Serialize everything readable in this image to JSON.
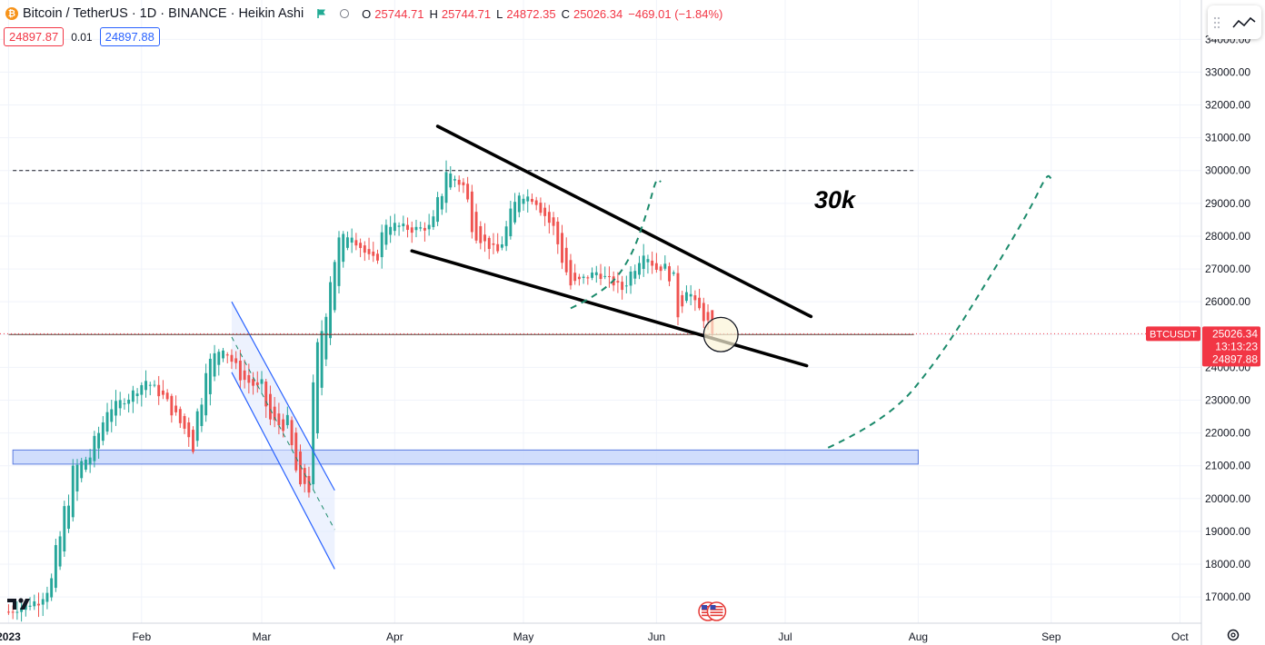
{
  "symbol": {
    "title": "Bitcoin / TetherUS · 1D · BINANCE · Heikin Ashi",
    "coin_icon": "bitcoin-icon",
    "coin_glyph": "₿",
    "o_label": "O",
    "o_value": "25744.71",
    "h_label": "H",
    "h_value": "25744.71",
    "l_label": "L",
    "l_value": "24872.35",
    "c_label": "C",
    "c_value": "25026.34",
    "change": "−469.01 (−1.84%)"
  },
  "trade": {
    "sell_price": "24897.87",
    "spread": "0.01",
    "buy_price": "24897.88"
  },
  "annotation_text": "30k",
  "price_axis": {
    "ticks": [
      "34000.00",
      "33000.00",
      "32000.00",
      "31000.00",
      "30000.00",
      "29000.00",
      "28000.00",
      "27000.00",
      "26000.00",
      "25000.00",
      "24000.00",
      "23000.00",
      "22000.00",
      "21000.00",
      "20000.00",
      "19000.00",
      "18000.00",
      "17000.00"
    ],
    "ticker_tag": "BTCUSDT",
    "last_price": "25026.34",
    "countdown": "13:13:23",
    "bid_price": "24897.88"
  },
  "time_axis": {
    "ticks": [
      {
        "label": "2023",
        "bold": true
      },
      {
        "label": "Feb",
        "bold": false
      },
      {
        "label": "Mar",
        "bold": false
      },
      {
        "label": "Apr",
        "bold": false
      },
      {
        "label": "May",
        "bold": false
      },
      {
        "label": "Jun",
        "bold": false
      },
      {
        "label": "Jul",
        "bold": false
      },
      {
        "label": "Aug",
        "bold": false
      },
      {
        "label": "Sep",
        "bold": false
      },
      {
        "label": "Oct",
        "bold": false
      }
    ]
  },
  "colors": {
    "up": "#26a69a",
    "down": "#ef5350",
    "accent_red": "#f23645",
    "channel": "#2962ff",
    "zone_fill": "#c8d7fb",
    "projection": "#1b8a6b",
    "grid": "#f0f3fa"
  },
  "chart_data": {
    "type": "candlestick",
    "style": "Heikin Ashi",
    "interval": "1D",
    "exchange": "BINANCE",
    "y_range": [
      16200,
      35200
    ],
    "x_range": [
      "2022-12-30",
      "2023-10-06"
    ],
    "grid": true,
    "anchors": [
      [
        "2023-01-01",
        16550
      ],
      [
        "2023-01-08",
        16900
      ],
      [
        "2023-01-11",
        17400
      ],
      [
        "2023-01-14",
        19500
      ],
      [
        "2023-01-16",
        20900
      ],
      [
        "2023-01-20",
        21300
      ],
      [
        "2023-01-24",
        22700
      ],
      [
        "2023-01-29",
        23100
      ],
      [
        "2023-02-02",
        23600
      ],
      [
        "2023-02-06",
        23100
      ],
      [
        "2023-02-10",
        22300
      ],
      [
        "2023-02-13",
        21800
      ],
      [
        "2023-02-16",
        24000
      ],
      [
        "2023-02-20",
        24700
      ],
      [
        "2023-02-24",
        23700
      ],
      [
        "2023-03-01",
        23300
      ],
      [
        "2023-03-03",
        22400
      ],
      [
        "2023-03-07",
        22100
      ],
      [
        "2023-03-10",
        20200
      ],
      [
        "2023-03-12",
        20800
      ],
      [
        "2023-03-14",
        24400
      ],
      [
        "2023-03-17",
        26800
      ],
      [
        "2023-03-19",
        27900
      ],
      [
        "2023-03-22",
        28100
      ],
      [
        "2023-03-27",
        27100
      ],
      [
        "2023-03-30",
        28400
      ],
      [
        "2023-04-05",
        28200
      ],
      [
        "2023-04-10",
        28300
      ],
      [
        "2023-04-13",
        30000
      ],
      [
        "2023-04-17",
        29500
      ],
      [
        "2023-04-20",
        28000
      ],
      [
        "2023-04-25",
        27500
      ],
      [
        "2023-04-30",
        29300
      ],
      [
        "2023-05-04",
        29100
      ],
      [
        "2023-05-08",
        28200
      ],
      [
        "2023-05-12",
        26500
      ],
      [
        "2023-05-18",
        26900
      ],
      [
        "2023-05-24",
        26400
      ],
      [
        "2023-05-29",
        27600
      ],
      [
        "2023-06-01",
        27000
      ],
      [
        "2023-06-04",
        27100
      ],
      [
        "2023-06-06",
        25700
      ],
      [
        "2023-06-08",
        26500
      ],
      [
        "2023-06-10",
        25900
      ],
      [
        "2023-06-12",
        25600
      ],
      [
        "2023-06-14",
        25000
      ]
    ],
    "last_close": 25026.34,
    "horizontal_lines": [
      {
        "price": 30000,
        "style": "dashed",
        "from": "2023-01-02",
        "to": "2023-07-31"
      },
      {
        "price": 25000,
        "style": "solid",
        "from": "2023-01-01",
        "to": "2023-07-31"
      }
    ],
    "support_zone": {
      "from": "2023-01-02",
      "to": "2023-08-01",
      "low": 21050,
      "high": 21480
    },
    "falling_wedge": {
      "upper": [
        [
          "2023-04-11",
          31350
        ],
        [
          "2023-07-07",
          25550
        ]
      ],
      "lower": [
        [
          "2023-04-05",
          27550
        ],
        [
          "2023-07-06",
          24050
        ]
      ]
    },
    "descending_channel": {
      "upper": [
        [
          "2023-02-22",
          26000
        ],
        [
          "2023-03-18",
          20250
        ]
      ],
      "lower": [
        [
          "2023-02-22",
          23850
        ],
        [
          "2023-03-18",
          17850
        ]
      ]
    },
    "highlight_circle": {
      "center": [
        "2023-06-16",
        25000
      ],
      "radius_days": 4,
      "radius_price": 800
    },
    "projections": [
      {
        "path": [
          [
            "2023-05-12",
            25800
          ],
          [
            "2023-05-20",
            26300
          ],
          [
            "2023-05-26",
            27300
          ],
          [
            "2023-05-30",
            28800
          ],
          [
            "2023-06-01",
            29800
          ],
          [
            "2023-06-02",
            29650
          ]
        ]
      },
      {
        "path": [
          [
            "2023-07-11",
            21550
          ],
          [
            "2023-07-25",
            22400
          ],
          [
            "2023-08-06",
            24300
          ],
          [
            "2023-08-17",
            26600
          ],
          [
            "2023-08-27",
            28800
          ],
          [
            "2023-08-31",
            29900
          ],
          [
            "2023-09-01",
            29750
          ]
        ]
      }
    ],
    "event_markers": [
      {
        "date": "2023-06-13"
      },
      {
        "date": "2023-06-15"
      }
    ]
  }
}
